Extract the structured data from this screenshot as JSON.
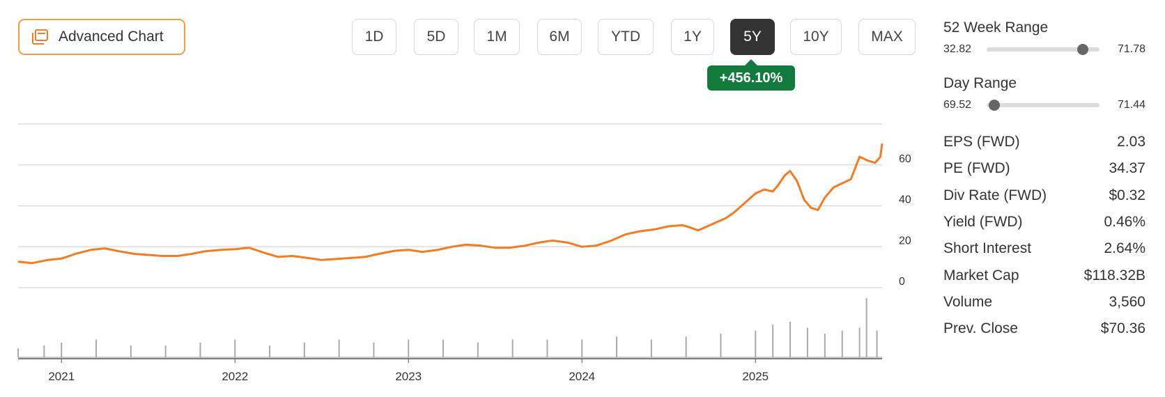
{
  "advanced_chart_label": "Advanced Chart",
  "range_buttons": [
    "1D",
    "5D",
    "1M",
    "6M",
    "YTD",
    "1Y",
    "5Y",
    "10Y",
    "MAX"
  ],
  "active_range": "5Y",
  "change_badge": "+456.10%",
  "colors": {
    "price_line": "#f47b20",
    "volume_bars": "#a9a9a9",
    "accent_border": "#f59b42",
    "badge_green": "#127a3d",
    "active_button": "#333333"
  },
  "week52": {
    "title": "52 Week Range",
    "low": "32.82",
    "high": "71.78",
    "position": 0.85
  },
  "day_range": {
    "title": "Day Range",
    "low": "69.52",
    "high": "71.44",
    "position": 0.07
  },
  "stats": [
    {
      "label": "EPS (FWD)",
      "value": "2.03"
    },
    {
      "label": "PE (FWD)",
      "value": "34.37"
    },
    {
      "label": "Div Rate (FWD)",
      "value": "$0.32"
    },
    {
      "label": "Yield (FWD)",
      "value": "0.46%"
    },
    {
      "label": "Short Interest",
      "value": "2.64%"
    },
    {
      "label": "Market Cap",
      "value": "$118.32B"
    },
    {
      "label": "Volume",
      "value": "3,560"
    },
    {
      "label": "Prev. Close",
      "value": "$70.36"
    }
  ],
  "chart_data": {
    "type": "line",
    "title": "",
    "xlabel": "",
    "ylabel": "",
    "x_ticks": [
      "2021",
      "2022",
      "2023",
      "2024",
      "2025"
    ],
    "y_ticks": [
      0,
      20,
      40,
      60
    ],
    "ylim": [
      0,
      80
    ],
    "xlim": [
      2020.75,
      2025.73
    ],
    "grid": true,
    "series": [
      {
        "x": [
          2020.75,
          2020.83,
          2020.92,
          2021.0,
          2021.08,
          2021.17,
          2021.25,
          2021.33,
          2021.42,
          2021.5,
          2021.58,
          2021.67,
          2021.75,
          2021.83,
          2021.92,
          2022.0,
          2022.08,
          2022.17,
          2022.25,
          2022.33,
          2022.42,
          2022.5,
          2022.58,
          2022.67,
          2022.75,
          2022.83,
          2022.92,
          2023.0,
          2023.08,
          2023.17,
          2023.25,
          2023.33,
          2023.42,
          2023.5,
          2023.58,
          2023.67,
          2023.75,
          2023.83,
          2023.92,
          2024.0,
          2024.08,
          2024.17,
          2024.25,
          2024.33,
          2024.42,
          2024.5,
          2024.58,
          2024.62,
          2024.67,
          2024.75,
          2024.83,
          2024.88,
          2024.92,
          2025.0,
          2025.05,
          2025.1,
          2025.13,
          2025.17,
          2025.2,
          2025.24,
          2025.28,
          2025.32,
          2025.36,
          2025.4,
          2025.45,
          2025.5,
          2025.55,
          2025.6,
          2025.65,
          2025.69,
          2025.72,
          2025.73
        ],
        "values": [
          12.7,
          12.0,
          13.5,
          14.2,
          16.5,
          18.5,
          19.2,
          17.8,
          16.5,
          16.0,
          15.5,
          15.5,
          16.5,
          17.8,
          18.5,
          18.8,
          19.5,
          17.0,
          15.0,
          15.5,
          14.5,
          13.5,
          14.0,
          14.5,
          15.0,
          16.5,
          18.0,
          18.5,
          17.5,
          18.5,
          20.0,
          21.0,
          20.5,
          19.5,
          19.5,
          20.5,
          22.0,
          23.0,
          22.0,
          20.0,
          20.5,
          23.0,
          26.0,
          27.5,
          28.5,
          30.0,
          30.5,
          29.5,
          28.0,
          31.0,
          34.0,
          37.0,
          40.0,
          46.0,
          48.0,
          47.0,
          50.0,
          55.0,
          57.0,
          52.0,
          43.0,
          39.0,
          38.0,
          44.0,
          49.0,
          51.0,
          53.0,
          64.0,
          62.0,
          61.0,
          64.0,
          70.4
        ]
      }
    ],
    "volume": {
      "x": [
        2020.75,
        2020.9,
        2021.0,
        2021.2,
        2021.4,
        2021.6,
        2021.8,
        2022.0,
        2022.2,
        2022.4,
        2022.6,
        2022.8,
        2023.0,
        2023.2,
        2023.4,
        2023.6,
        2023.8,
        2024.0,
        2024.2,
        2024.4,
        2024.6,
        2024.8,
        2025.0,
        2025.1,
        2025.2,
        2025.3,
        2025.4,
        2025.5,
        2025.6,
        2025.64,
        2025.7
      ],
      "values": [
        0.15,
        0.2,
        0.25,
        0.3,
        0.2,
        0.2,
        0.25,
        0.3,
        0.2,
        0.25,
        0.3,
        0.25,
        0.3,
        0.3,
        0.25,
        0.3,
        0.3,
        0.3,
        0.35,
        0.3,
        0.35,
        0.4,
        0.45,
        0.55,
        0.6,
        0.5,
        0.4,
        0.45,
        0.5,
        1.0,
        0.45
      ]
    }
  }
}
